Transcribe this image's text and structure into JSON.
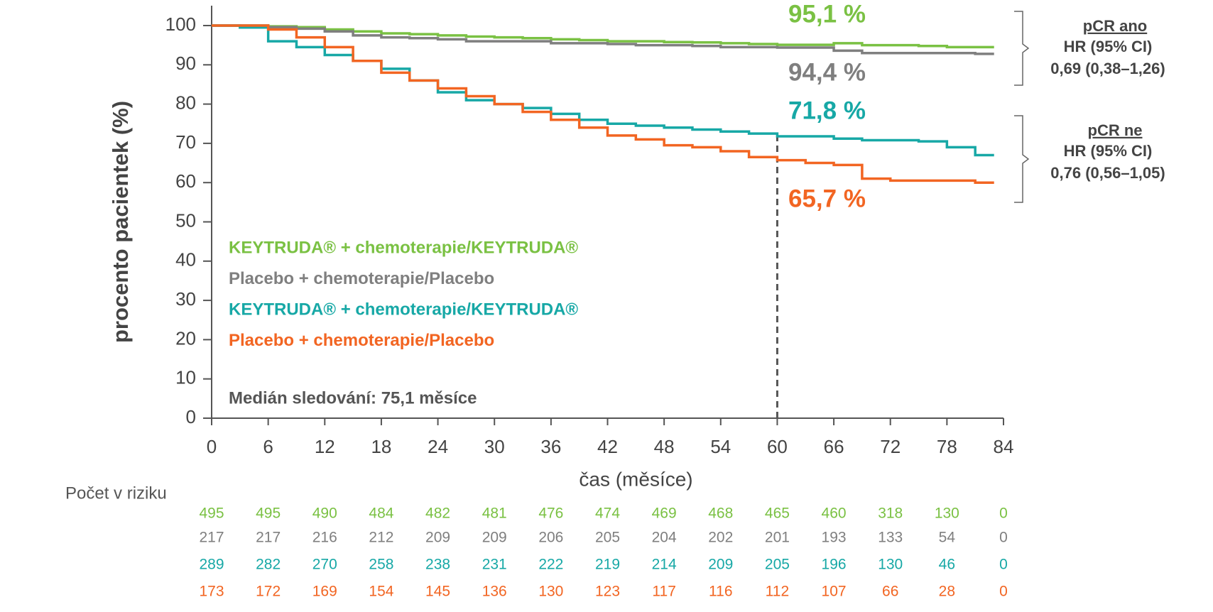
{
  "chart_data": {
    "type": "line",
    "step": true,
    "x_label": "čas (měsíce)",
    "y_label": "procento pacientek (%)",
    "xlim": [
      0,
      84
    ],
    "xticks": [
      0,
      6,
      12,
      18,
      24,
      30,
      36,
      42,
      48,
      54,
      60,
      66,
      72,
      78,
      84
    ],
    "ylim": [
      0,
      100
    ],
    "yticks": [
      0,
      10,
      20,
      30,
      40,
      50,
      60,
      70,
      80,
      90,
      100
    ],
    "vline_x": 60,
    "x": [
      0,
      3,
      6,
      9,
      12,
      15,
      18,
      21,
      24,
      27,
      30,
      33,
      36,
      39,
      42,
      45,
      48,
      51,
      54,
      57,
      60,
      63,
      66,
      69,
      72,
      75,
      78,
      81,
      83
    ],
    "series": [
      {
        "name": "KEYTRUDA® + chemoterapie/KEYTRUDA®",
        "color": "#7ac143",
        "end_label": "95,1 %",
        "values": [
          100,
          100,
          99.8,
          99.6,
          99,
          98.5,
          98,
          97.8,
          97.5,
          97.2,
          97,
          96.8,
          96.5,
          96.3,
          96,
          96,
          95.8,
          95.7,
          95.5,
          95.3,
          95.1,
          95.1,
          95.5,
          95,
          95,
          94.8,
          94.5,
          94.5,
          94.5
        ]
      },
      {
        "name": "Placebo + chemoterapie/Placebo",
        "color": "#7f7f7f",
        "end_label": "94,4 %",
        "values": [
          100,
          100,
          99.6,
          99.2,
          98.5,
          97.5,
          97,
          96.8,
          96.5,
          96,
          96,
          96,
          95.5,
          95.5,
          95.3,
          95,
          95,
          94.8,
          94.5,
          94.5,
          94.4,
          94.4,
          93.6,
          93,
          93,
          93,
          93,
          92.8,
          92.8
        ]
      },
      {
        "name": "KEYTRUDA® + chemoterapie/KEYTRUDA®",
        "color": "#17a8a6",
        "end_label": "71,8 %",
        "values": [
          100,
          99.5,
          96,
          94.5,
          92.5,
          91,
          89,
          86,
          83,
          81,
          80,
          79,
          77.5,
          76,
          75,
          74.5,
          74,
          73.5,
          73,
          72.5,
          71.8,
          71.8,
          71.2,
          70.8,
          70.8,
          70.5,
          69,
          67,
          67
        ]
      },
      {
        "name": "Placebo + chemoterapie/Placebo",
        "color": "#f26522",
        "end_label": "65,7 %",
        "values": [
          100,
          100,
          99,
          97,
          94.5,
          91,
          88,
          86,
          84,
          82,
          80,
          78,
          76,
          74,
          72,
          71,
          69.5,
          69,
          68,
          66.5,
          65.7,
          65,
          64.5,
          61,
          60.5,
          60.5,
          60.5,
          60,
          60
        ]
      }
    ],
    "note": "Medián sledování: 75,1 měsíce",
    "hr_groups": [
      {
        "title": "pCR ano",
        "hr_label": "HR (95% CI)",
        "hr": "0,69 (0,38–1,26)"
      },
      {
        "title": "pCR ne",
        "hr_label": "HR (95% CI)",
        "hr": "0,76 (0,56–1,05)"
      }
    ],
    "risk_table": {
      "title": "Počet v riziku",
      "rows": [
        [
          495,
          495,
          490,
          484,
          482,
          481,
          476,
          474,
          469,
          468,
          465,
          460,
          318,
          130,
          0
        ],
        [
          217,
          217,
          216,
          212,
          209,
          209,
          206,
          205,
          204,
          202,
          201,
          193,
          133,
          54,
          0
        ],
        [
          289,
          282,
          270,
          258,
          238,
          231,
          222,
          219,
          214,
          209,
          205,
          196,
          130,
          46,
          0
        ],
        [
          173,
          172,
          169,
          154,
          145,
          136,
          130,
          123,
          117,
          116,
          112,
          107,
          66,
          28,
          0
        ]
      ]
    }
  }
}
